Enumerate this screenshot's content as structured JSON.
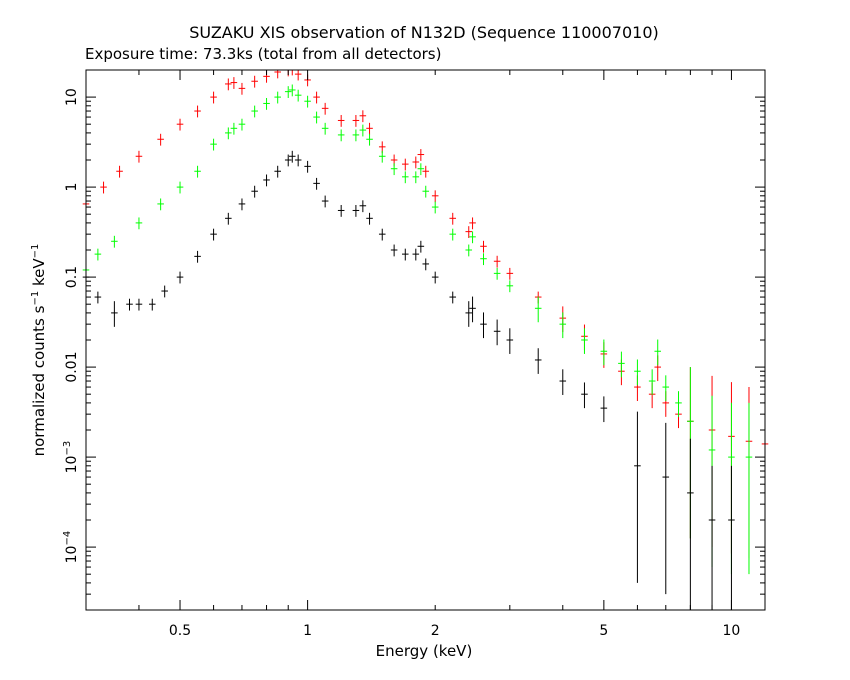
{
  "chart_data": {
    "type": "scatter",
    "title": "SUZAKU XIS observation of N132D (Sequence 110007010)",
    "subtitle": "Exposure time: 73.3ks (total from all detectors)",
    "xlabel": "Energy (keV)",
    "ylabel": {
      "prefix": "normalized counts s",
      "sup1": "−1",
      "middle": " keV",
      "sup2": "−1"
    },
    "x_scale": "log",
    "y_scale": "log",
    "xlim": [
      0.3,
      12
    ],
    "ylim": [
      2e-05,
      20
    ],
    "grid": false,
    "x_tick_labels": [
      {
        "value": 0.5,
        "label": "0.5"
      },
      {
        "value": 1,
        "label": "1"
      },
      {
        "value": 2,
        "label": "2"
      },
      {
        "value": 5,
        "label": "5"
      },
      {
        "value": 10,
        "label": "10"
      }
    ],
    "y_tick_labels": [
      {
        "value": 10,
        "label": "10",
        "exp": ""
      },
      {
        "value": 1,
        "label": "1",
        "exp": ""
      },
      {
        "value": 0.1,
        "label": "0.1",
        "exp": ""
      },
      {
        "value": 0.01,
        "label": "0.01",
        "exp": ""
      },
      {
        "value": 0.001,
        "label": "10",
        "exp": "−3"
      },
      {
        "value": 0.0001,
        "label": "10",
        "exp": "−4"
      }
    ],
    "series": [
      {
        "color": "#ff0000",
        "x": [
          0.3,
          0.33,
          0.36,
          0.4,
          0.45,
          0.5,
          0.55,
          0.6,
          0.65,
          0.67,
          0.7,
          0.75,
          0.8,
          0.85,
          0.9,
          0.92,
          0.95,
          1.0,
          1.05,
          1.1,
          1.2,
          1.3,
          1.35,
          1.4,
          1.5,
          1.6,
          1.7,
          1.8,
          1.85,
          1.9,
          2.0,
          2.2,
          2.4,
          2.45,
          2.6,
          2.8,
          3.0,
          3.5,
          4.0,
          4.5,
          5.0,
          5.5,
          6.0,
          6.5,
          6.7,
          7.0,
          7.5,
          8.0,
          9.0,
          10.0,
          11.0,
          12.0
        ],
        "y": [
          0.65,
          1.0,
          1.5,
          2.2,
          3.4,
          5.0,
          7.0,
          10.0,
          14.0,
          14.5,
          12.5,
          15.0,
          17.0,
          19.0,
          20.0,
          20.5,
          18.0,
          15.5,
          10.0,
          7.5,
          5.5,
          5.5,
          6.2,
          4.5,
          2.8,
          2.0,
          1.8,
          1.9,
          2.3,
          1.5,
          0.8,
          0.45,
          0.32,
          0.4,
          0.22,
          0.15,
          0.11,
          0.06,
          0.035,
          0.022,
          0.014,
          0.009,
          0.006,
          0.005,
          0.01,
          0.004,
          0.003,
          0.0025,
          0.002,
          0.0017,
          0.0015,
          0.0014
        ]
      },
      {
        "color": "#00ff00",
        "x": [
          0.3,
          0.32,
          0.35,
          0.4,
          0.45,
          0.5,
          0.55,
          0.6,
          0.65,
          0.67,
          0.7,
          0.75,
          0.8,
          0.85,
          0.9,
          0.92,
          0.95,
          1.0,
          1.05,
          1.1,
          1.2,
          1.3,
          1.35,
          1.4,
          1.5,
          1.6,
          1.7,
          1.8,
          1.85,
          1.9,
          2.0,
          2.2,
          2.4,
          2.45,
          2.6,
          2.8,
          3.0,
          3.5,
          4.0,
          4.5,
          5.0,
          5.5,
          6.0,
          6.5,
          6.7,
          7.0,
          7.5,
          8.0,
          9.0,
          10.0,
          11.0
        ],
        "y": [
          0.12,
          0.18,
          0.25,
          0.4,
          0.65,
          1.0,
          1.5,
          3.0,
          4.0,
          4.5,
          5.0,
          7.0,
          8.5,
          10.0,
          11.5,
          12.0,
          10.5,
          9.0,
          6.0,
          4.5,
          3.8,
          3.8,
          4.3,
          3.4,
          2.2,
          1.6,
          1.3,
          1.3,
          1.6,
          0.9,
          0.6,
          0.3,
          0.2,
          0.28,
          0.16,
          0.11,
          0.08,
          0.045,
          0.03,
          0.02,
          0.015,
          0.011,
          0.009,
          0.007,
          0.015,
          0.006,
          0.004,
          0.0025,
          0.0012,
          0.001,
          0.001
        ]
      },
      {
        "color": "#000000",
        "x": [
          0.3,
          0.32,
          0.35,
          0.38,
          0.4,
          0.43,
          0.46,
          0.5,
          0.55,
          0.6,
          0.65,
          0.7,
          0.75,
          0.8,
          0.85,
          0.9,
          0.92,
          0.95,
          1.0,
          1.05,
          1.1,
          1.2,
          1.3,
          1.35,
          1.4,
          1.5,
          1.6,
          1.7,
          1.8,
          1.85,
          1.9,
          2.0,
          2.2,
          2.4,
          2.45,
          2.6,
          2.8,
          3.0,
          3.5,
          4.0,
          4.5,
          5.0,
          6.0,
          7.0,
          8.0,
          9.0,
          10.0
        ],
        "y": [
          0.1,
          0.06,
          0.04,
          0.05,
          0.05,
          0.05,
          0.07,
          0.1,
          0.17,
          0.3,
          0.45,
          0.65,
          0.9,
          1.2,
          1.5,
          2.0,
          2.2,
          2.0,
          1.7,
          1.1,
          0.7,
          0.55,
          0.55,
          0.62,
          0.45,
          0.3,
          0.2,
          0.18,
          0.18,
          0.22,
          0.14,
          0.1,
          0.06,
          0.04,
          0.045,
          0.03,
          0.025,
          0.02,
          0.012,
          0.007,
          0.005,
          0.0035,
          0.0008,
          0.0006,
          0.0004,
          0.0002,
          0.0002
        ]
      }
    ]
  }
}
